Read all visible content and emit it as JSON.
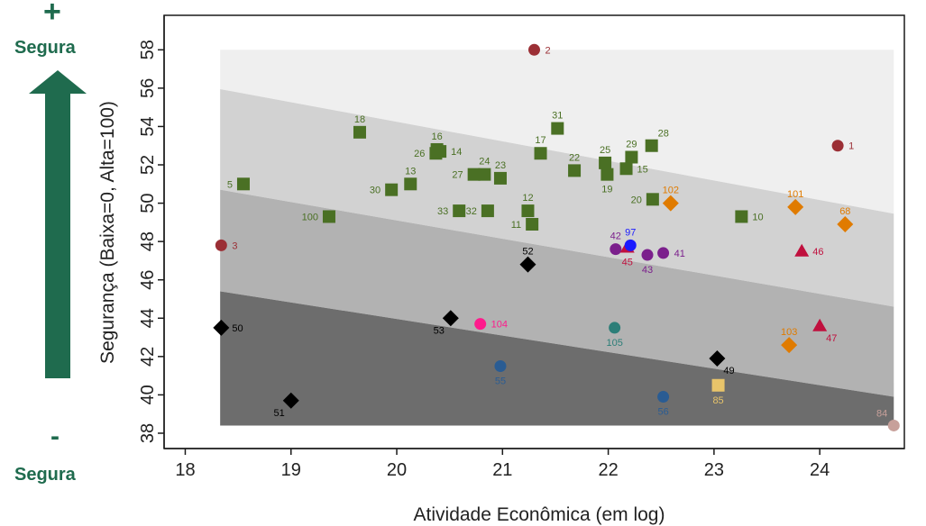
{
  "side": {
    "plus": "+",
    "minus": "-",
    "top_word": "Segura",
    "bottom_word": "Segura"
  },
  "colors": {
    "arrow": "#1f6b4e",
    "band1": "#efefef",
    "band2": "#d2d2d2",
    "band3": "#b2b2b2",
    "band4": "#6d6d6d",
    "green": "#4a7024",
    "orange": "#e07b00",
    "crimson": "#c0103e",
    "maroon": "#9b2f35",
    "purple": "#7b1f8c",
    "blue": "#1a1aff",
    "black": "#000000",
    "pink": "#ff1a8c",
    "teal": "#2c7e78",
    "navy": "#2a5c93",
    "sand": "#e8c46a",
    "rose": "#c7a09a"
  },
  "chart_data": {
    "type": "scatter",
    "xlabel": "Atividade Econômica (em log)",
    "ylabel": "Segurança (Baixa=0, Alta=100)",
    "xlim": [
      17.8,
      24.8
    ],
    "ylim": [
      37.2,
      59.8
    ],
    "xticks": [
      "18",
      "19",
      "20",
      "21",
      "22",
      "23",
      "24"
    ],
    "yticks": [
      "38",
      "40",
      "42",
      "44",
      "46",
      "48",
      "50",
      "52",
      "54",
      "56",
      "58"
    ],
    "bands": {
      "x_range": [
        18.33,
        24.7
      ],
      "y_top": 58,
      "y_bottom": 38.4,
      "boundaries": [
        {
          "y_left": 55.95,
          "y_right": 49.45
        },
        {
          "y_left": 50.7,
          "y_right": 44.6
        },
        {
          "y_left": 45.4,
          "y_right": 39.9
        }
      ]
    },
    "points": [
      {
        "label": "1",
        "x": 24.17,
        "y": 53.0,
        "shape": "circle",
        "color": "maroon",
        "pos": "right"
      },
      {
        "label": "2",
        "x": 21.3,
        "y": 58.0,
        "shape": "circle",
        "color": "maroon",
        "pos": "right"
      },
      {
        "label": "3",
        "x": 18.34,
        "y": 47.8,
        "shape": "circle",
        "color": "maroon",
        "pos": "right"
      },
      {
        "label": "5",
        "x": 18.55,
        "y": 51.0,
        "shape": "square",
        "color": "green",
        "pos": "left"
      },
      {
        "label": "10",
        "x": 23.26,
        "y": 49.3,
        "shape": "square",
        "color": "green",
        "pos": "right"
      },
      {
        "label": "11",
        "x": 21.28,
        "y": 48.9,
        "shape": "square",
        "color": "green",
        "pos": "left"
      },
      {
        "label": "12",
        "x": 21.24,
        "y": 49.6,
        "shape": "square",
        "color": "green",
        "pos": "above"
      },
      {
        "label": "13",
        "x": 20.13,
        "y": 51.0,
        "shape": "square",
        "color": "green",
        "pos": "above"
      },
      {
        "label": "14",
        "x": 20.41,
        "y": 52.7,
        "shape": "square",
        "color": "green",
        "pos": "right"
      },
      {
        "label": "15",
        "x": 22.17,
        "y": 51.8,
        "shape": "square",
        "color": "green",
        "pos": "right"
      },
      {
        "label": "16",
        "x": 20.38,
        "y": 52.8,
        "shape": "square",
        "color": "green",
        "pos": "above"
      },
      {
        "label": "17",
        "x": 21.36,
        "y": 52.6,
        "shape": "square",
        "color": "green",
        "pos": "above"
      },
      {
        "label": "18",
        "x": 19.65,
        "y": 53.7,
        "shape": "square",
        "color": "green",
        "pos": "above"
      },
      {
        "label": "19",
        "x": 21.99,
        "y": 51.5,
        "shape": "square",
        "color": "green",
        "pos": "below"
      },
      {
        "label": "20",
        "x": 22.42,
        "y": 50.2,
        "shape": "square",
        "color": "green",
        "pos": "left"
      },
      {
        "label": "22",
        "x": 21.68,
        "y": 51.7,
        "shape": "square",
        "color": "green",
        "pos": "above"
      },
      {
        "label": "23",
        "x": 20.98,
        "y": 51.3,
        "shape": "square",
        "color": "green",
        "pos": "above"
      },
      {
        "label": "24",
        "x": 20.83,
        "y": 51.5,
        "shape": "square",
        "color": "green",
        "pos": "above"
      },
      {
        "label": "25",
        "x": 21.97,
        "y": 52.1,
        "shape": "square",
        "color": "green",
        "pos": "above"
      },
      {
        "label": "26",
        "x": 20.37,
        "y": 52.6,
        "shape": "square",
        "color": "green",
        "pos": "left"
      },
      {
        "label": "27",
        "x": 20.73,
        "y": 51.5,
        "shape": "square",
        "color": "green",
        "pos": "left"
      },
      {
        "label": "28",
        "x": 22.41,
        "y": 53.0,
        "shape": "square",
        "color": "green",
        "pos": "aboveright"
      },
      {
        "label": "29",
        "x": 22.22,
        "y": 52.4,
        "shape": "square",
        "color": "green",
        "pos": "above"
      },
      {
        "label": "30",
        "x": 19.95,
        "y": 50.7,
        "shape": "square",
        "color": "green",
        "pos": "left"
      },
      {
        "label": "31",
        "x": 21.52,
        "y": 53.9,
        "shape": "square",
        "color": "green",
        "pos": "above"
      },
      {
        "label": "32",
        "x": 20.86,
        "y": 49.6,
        "shape": "square",
        "color": "green",
        "pos": "left"
      },
      {
        "label": "33",
        "x": 20.59,
        "y": 49.6,
        "shape": "square",
        "color": "green",
        "pos": "left"
      },
      {
        "label": "100",
        "x": 19.36,
        "y": 49.3,
        "shape": "square",
        "color": "green",
        "pos": "left"
      },
      {
        "label": "41",
        "x": 22.52,
        "y": 47.4,
        "shape": "circle",
        "color": "purple",
        "pos": "right"
      },
      {
        "label": "42",
        "x": 22.07,
        "y": 47.6,
        "shape": "circle",
        "color": "purple",
        "pos": "above"
      },
      {
        "label": "43",
        "x": 22.37,
        "y": 47.3,
        "shape": "circle",
        "color": "purple",
        "pos": "below"
      },
      {
        "label": "45",
        "x": 22.18,
        "y": 47.7,
        "shape": "triangle",
        "color": "crimson",
        "pos": "below"
      },
      {
        "label": "97",
        "x": 22.21,
        "y": 47.8,
        "shape": "circle",
        "color": "blue",
        "pos": "above"
      },
      {
        "label": "46",
        "x": 23.83,
        "y": 47.5,
        "shape": "triangle",
        "color": "crimson",
        "pos": "right"
      },
      {
        "label": "47",
        "x": 24.0,
        "y": 43.6,
        "shape": "triangle",
        "color": "crimson",
        "pos": "belowright"
      },
      {
        "label": "49",
        "x": 23.03,
        "y": 41.9,
        "shape": "diamond",
        "color": "black",
        "pos": "belowright"
      },
      {
        "label": "50",
        "x": 18.34,
        "y": 43.5,
        "shape": "diamond",
        "color": "black",
        "pos": "right"
      },
      {
        "label": "51",
        "x": 19.0,
        "y": 39.7,
        "shape": "diamond",
        "color": "black",
        "pos": "belowleft"
      },
      {
        "label": "52",
        "x": 21.24,
        "y": 46.8,
        "shape": "diamond",
        "color": "black",
        "pos": "above"
      },
      {
        "label": "53",
        "x": 20.51,
        "y": 44.0,
        "shape": "diamond",
        "color": "black",
        "pos": "belowleft"
      },
      {
        "label": "55",
        "x": 20.98,
        "y": 41.5,
        "shape": "circle",
        "color": "navy",
        "pos": "below"
      },
      {
        "label": "56",
        "x": 22.52,
        "y": 39.9,
        "shape": "circle",
        "color": "navy",
        "pos": "below"
      },
      {
        "label": "68",
        "x": 24.24,
        "y": 48.9,
        "shape": "diamond",
        "color": "orange",
        "pos": "above"
      },
      {
        "label": "84",
        "x": 24.7,
        "y": 38.4,
        "shape": "circle",
        "color": "rose",
        "pos": "aboveleft"
      },
      {
        "label": "85",
        "x": 23.04,
        "y": 40.5,
        "shape": "square",
        "color": "sand",
        "pos": "below"
      },
      {
        "label": "101",
        "x": 23.77,
        "y": 49.8,
        "shape": "diamond",
        "color": "orange",
        "pos": "above"
      },
      {
        "label": "102",
        "x": 22.59,
        "y": 50.0,
        "shape": "diamond",
        "color": "orange",
        "pos": "above"
      },
      {
        "label": "103",
        "x": 23.71,
        "y": 42.6,
        "shape": "diamond",
        "color": "orange",
        "pos": "above"
      },
      {
        "label": "104",
        "x": 20.79,
        "y": 43.7,
        "shape": "circle",
        "color": "pink",
        "pos": "right"
      },
      {
        "label": "105",
        "x": 22.06,
        "y": 43.5,
        "shape": "circle",
        "color": "teal",
        "pos": "below"
      }
    ]
  }
}
